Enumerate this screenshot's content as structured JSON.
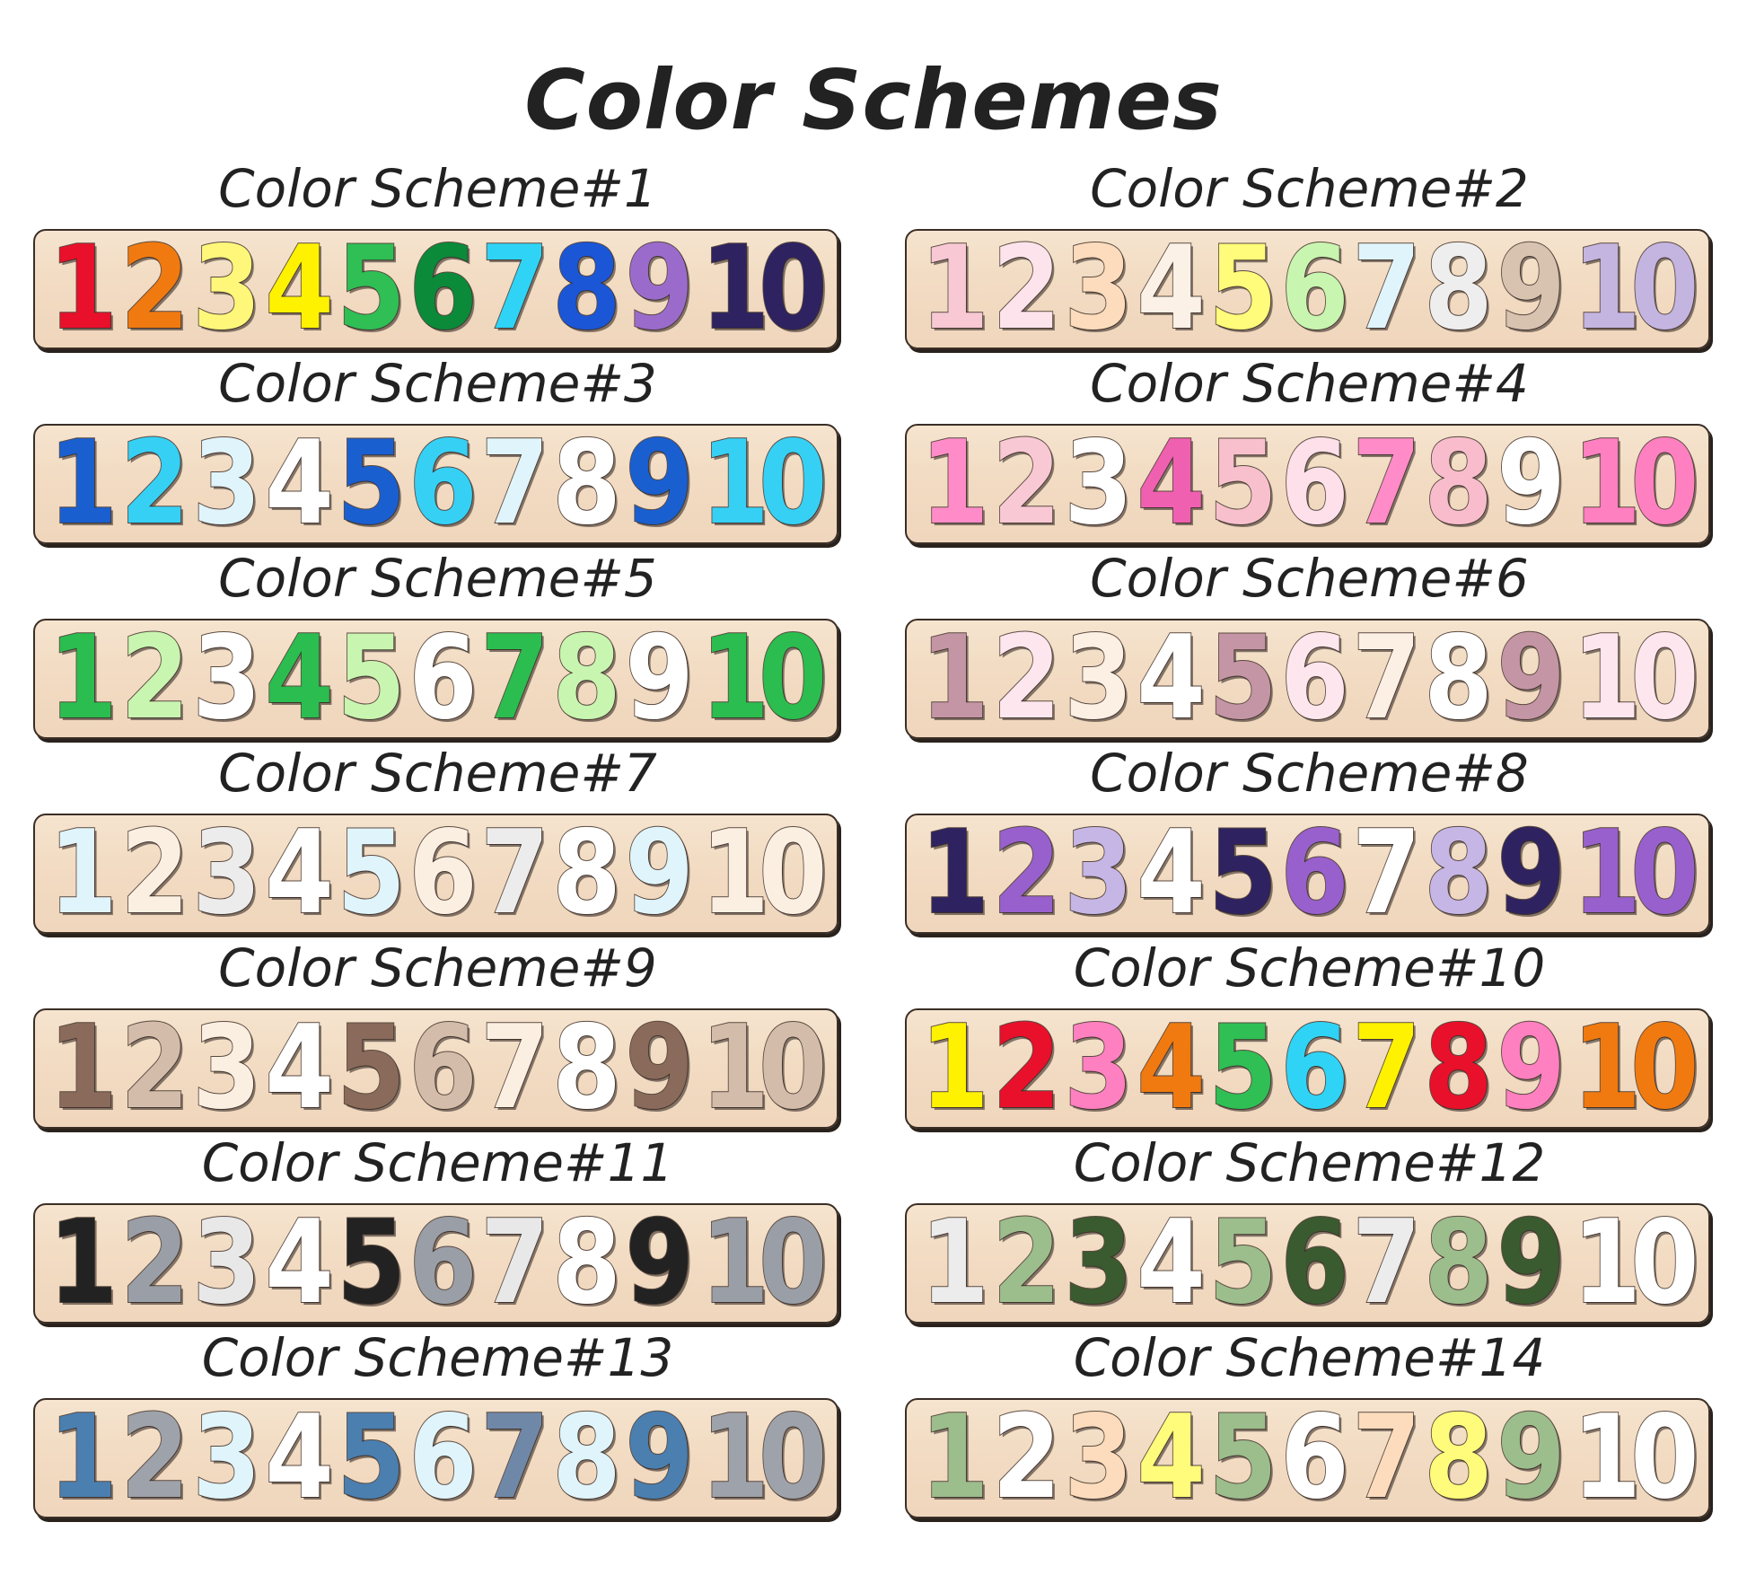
{
  "title": "Color Schemes",
  "digits": [
    "1",
    "2",
    "3",
    "4",
    "5",
    "6",
    "7",
    "8",
    "9",
    "10"
  ],
  "schemes": [
    {
      "label": "Color Scheme#1",
      "colors": [
        "#e8102a",
        "#f07a10",
        "#fef77a",
        "#fff200",
        "#2fbf55",
        "#0b8a3a",
        "#2fd3f5",
        "#1a56d6",
        "#9b6bcc",
        "#2e2261"
      ]
    },
    {
      "label": "Color Scheme#2",
      "colors": [
        "#f8c8d4",
        "#fde4ec",
        "#fcdcbc",
        "#fbf1e6",
        "#fefc7a",
        "#c8f5b0",
        "#e0f4fb",
        "#eeeeee",
        "#d8c2b0",
        "#c4b4e0"
      ]
    },
    {
      "label": "Color Scheme#3",
      "colors": [
        "#1a5fd0",
        "#36d0f5",
        "#e0f4fb",
        "#ffffff",
        "#1a5fd0",
        "#36d0f5",
        "#e0f4fb",
        "#ffffff",
        "#1a5fd0",
        "#36d0f5"
      ]
    },
    {
      "label": "Color Scheme#4",
      "colors": [
        "#ff8cc8",
        "#f8c8d4",
        "#ffffff",
        "#f060b0",
        "#f8c0cc",
        "#fde0ea",
        "#ff8cc8",
        "#f8bccc",
        "#ffffff",
        "#ff80c0"
      ]
    },
    {
      "label": "Color Scheme#5",
      "colors": [
        "#2bbd4f",
        "#c8f5b0",
        "#ffffff",
        "#2bbd4f",
        "#c8f5b0",
        "#ffffff",
        "#2bbd4f",
        "#c8f5b0",
        "#ffffff",
        "#2bbd4f"
      ]
    },
    {
      "label": "Color Scheme#6",
      "colors": [
        "#c495a5",
        "#fde6ee",
        "#fcefe4",
        "#ffffff",
        "#c495a5",
        "#fde6ee",
        "#fcefe4",
        "#ffffff",
        "#c495a5",
        "#fde6ee"
      ]
    },
    {
      "label": "Color Scheme#7",
      "colors": [
        "#e0f4fb",
        "#fbefe2",
        "#ececec",
        "#ffffff",
        "#e0f4fb",
        "#fbefe2",
        "#ececec",
        "#ffffff",
        "#e0f4fb",
        "#fbefe2"
      ]
    },
    {
      "label": "Color Scheme#8",
      "colors": [
        "#2e2261",
        "#9860cc",
        "#c6b6e6",
        "#ffffff",
        "#2e2261",
        "#9860cc",
        "#ffffff",
        "#c6b6e6",
        "#2e2261",
        "#9860cc"
      ]
    },
    {
      "label": "Color Scheme#9",
      "colors": [
        "#8a6a5a",
        "#d3bcaa",
        "#fbefe2",
        "#ffffff",
        "#8a6a5a",
        "#d3bcaa",
        "#fbefe2",
        "#ffffff",
        "#8a6a5a",
        "#d3bcaa"
      ]
    },
    {
      "label": "Color Scheme#10",
      "colors": [
        "#fff200",
        "#e8102a",
        "#ff80c0",
        "#f07a10",
        "#2fbf55",
        "#2fd3f5",
        "#fff200",
        "#e8102a",
        "#ff80c0",
        "#f07a10"
      ]
    },
    {
      "label": "Color Scheme#11",
      "colors": [
        "#222222",
        "#9a9ea6",
        "#e8e8e8",
        "#ffffff",
        "#222222",
        "#9a9ea6",
        "#e8e8e8",
        "#ffffff",
        "#222222",
        "#9a9ea6"
      ]
    },
    {
      "label": "Color Scheme#12",
      "colors": [
        "#ececec",
        "#9cbd8c",
        "#3a5a30",
        "#ffffff",
        "#9cbd8c",
        "#3a5a30",
        "#ececec",
        "#9cbd8c",
        "#3a5a30",
        "#ffffff"
      ]
    },
    {
      "label": "Color Scheme#13",
      "colors": [
        "#4a7fb0",
        "#9ea2aa",
        "#e0f4fb",
        "#ffffff",
        "#4a7fb0",
        "#e0f4fb",
        "#7088a8",
        "#e0f4fb",
        "#4a7fb0",
        "#9ea2aa"
      ]
    },
    {
      "label": "Color Scheme#14",
      "colors": [
        "#9cbd8c",
        "#ffffff",
        "#fcdcbc",
        "#fefc7a",
        "#9cbd8c",
        "#ffffff",
        "#fcdcbc",
        "#fefc7a",
        "#9cbd8c",
        "#ffffff"
      ]
    }
  ]
}
